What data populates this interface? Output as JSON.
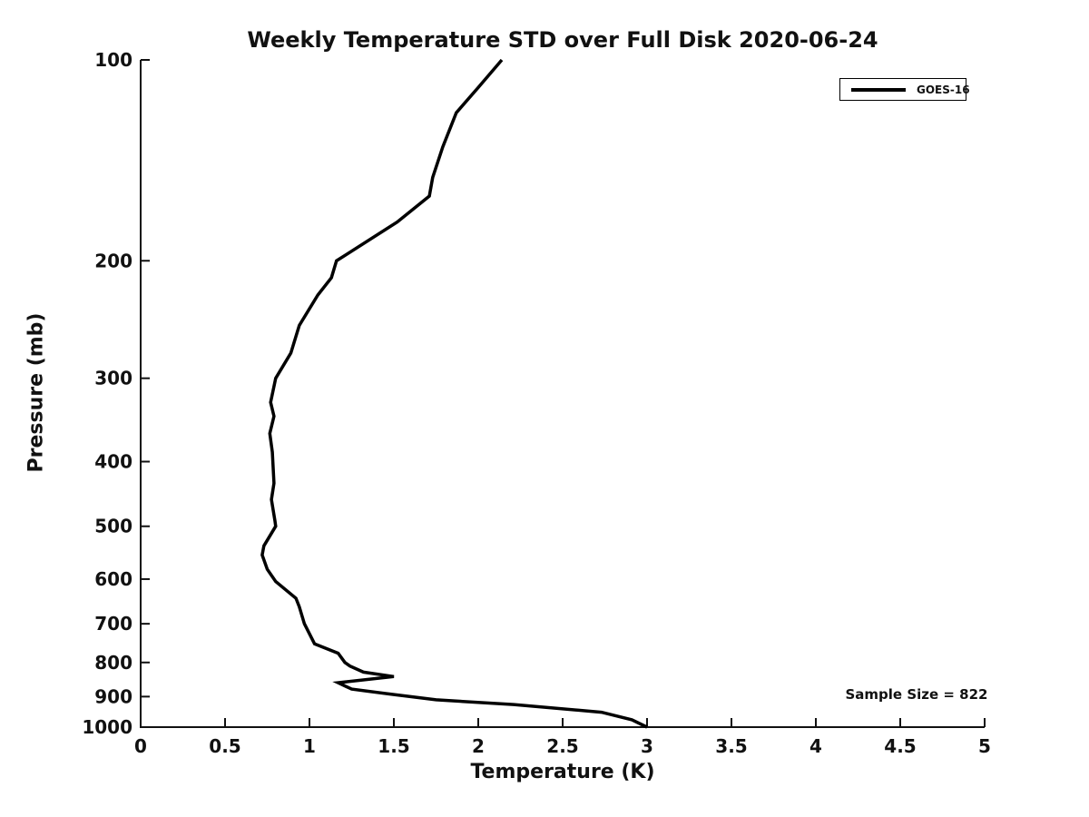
{
  "figure": {
    "background": "#ffffff",
    "text_color": "#111111",
    "axis_color": "#111111"
  },
  "chart_data": {
    "type": "line",
    "title": "Weekly Temperature STD over Full Disk 2020-06-24",
    "xlabel": "Temperature (K)",
    "ylabel": "Pressure (mb)",
    "xlim": [
      0,
      5
    ],
    "x_ticks": [
      0,
      0.5,
      1,
      1.5,
      2,
      2.5,
      3,
      3.5,
      4,
      4.5,
      5
    ],
    "x_tick_labels": [
      "0",
      "0.5",
      "1",
      "1.5",
      "2",
      "2.5",
      "3",
      "3.5",
      "4",
      "4.5",
      "5"
    ],
    "y_scale": "log",
    "y_axis_reversed": true,
    "ylim": [
      100,
      1000
    ],
    "y_ticks": [
      100,
      200,
      300,
      400,
      500,
      600,
      700,
      800,
      900,
      1000
    ],
    "y_tick_labels": [
      "100",
      "200",
      "300",
      "400",
      "500",
      "600",
      "700",
      "800",
      "900",
      "1000"
    ],
    "grid": false,
    "legend": {
      "position": "top-right",
      "entries": [
        {
          "label": "GOES-16",
          "color": "#000000",
          "linewidth": 4
        }
      ]
    },
    "annotation": "Sample Size = 822",
    "series": [
      {
        "name": "GOES-16",
        "color": "#000000",
        "linewidth": 3.5,
        "points_format": [
          "pressure_mb",
          "temperature_std_K"
        ],
        "points": [
          [
            100,
            2.14
          ],
          [
            110,
            2.0
          ],
          [
            120,
            1.87
          ],
          [
            135,
            1.79
          ],
          [
            150,
            1.73
          ],
          [
            160,
            1.71
          ],
          [
            175,
            1.52
          ],
          [
            200,
            1.16
          ],
          [
            212,
            1.13
          ],
          [
            225,
            1.05
          ],
          [
            250,
            0.94
          ],
          [
            275,
            0.89
          ],
          [
            300,
            0.8
          ],
          [
            326,
            0.77
          ],
          [
            342,
            0.79
          ],
          [
            363,
            0.765
          ],
          [
            387,
            0.78
          ],
          [
            431,
            0.79
          ],
          [
            456,
            0.775
          ],
          [
            490,
            0.795
          ],
          [
            500,
            0.8
          ],
          [
            535,
            0.73
          ],
          [
            552,
            0.72
          ],
          [
            580,
            0.75
          ],
          [
            605,
            0.8
          ],
          [
            641,
            0.92
          ],
          [
            660,
            0.94
          ],
          [
            700,
            0.97
          ],
          [
            750,
            1.03
          ],
          [
            775,
            1.17
          ],
          [
            800,
            1.21
          ],
          [
            810,
            1.24
          ],
          [
            827,
            1.32
          ],
          [
            840,
            1.5
          ],
          [
            858,
            1.17
          ],
          [
            877,
            1.25
          ],
          [
            893,
            1.49
          ],
          [
            910,
            1.75
          ],
          [
            925,
            2.21
          ],
          [
            950,
            2.73
          ],
          [
            975,
            2.91
          ],
          [
            1000,
            3.0
          ]
        ]
      }
    ]
  }
}
